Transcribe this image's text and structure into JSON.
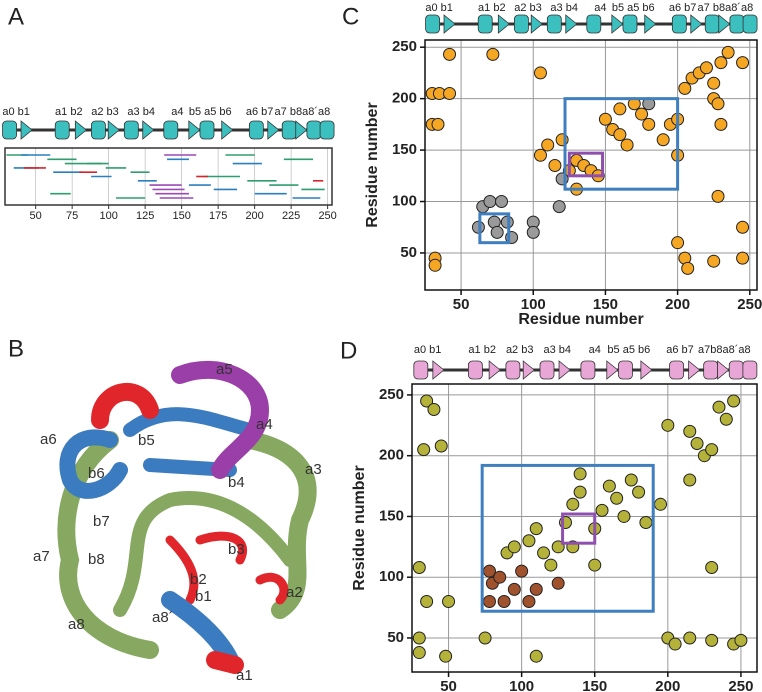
{
  "panel_labels": [
    "A",
    "B",
    "C",
    "D"
  ],
  "structure_labels": [
    "a5",
    "a4",
    "b5",
    "b4",
    "a6",
    "b6",
    "a3",
    "b7",
    "b3",
    "a7",
    "b8",
    "b2",
    "b1",
    "a2",
    "a8´",
    "a8",
    "a1"
  ],
  "chart_data": [
    {
      "type": "range",
      "track_labels": [
        "a0 b1",
        "a1 b2",
        "a2 b3",
        "a3 b4",
        "a4",
        "b5 a5 b6",
        "a6 b7",
        "a7 b8a8´a8"
      ],
      "track_color": "#3cbfbf",
      "xlim": [
        29,
        253
      ],
      "xticks": [
        50,
        75,
        100,
        125,
        150,
        175,
        200,
        225,
        250
      ],
      "grid": true,
      "series": [
        {
          "color": "#2e9e6f",
          "start": [
            30,
            58,
            70,
            98,
            115,
            165,
            195,
            210,
            232,
            60,
            105,
            180,
            220,
            85
          ],
          "end": [
            45,
            78,
            95,
            112,
            128,
            190,
            215,
            230,
            248,
            74,
            125,
            200,
            240,
            100
          ]
        },
        {
          "color": "#2a7fc0",
          "start": [
            35,
            62,
            88,
            120,
            155,
            172,
            200,
            226,
            40,
            140,
            185
          ],
          "end": [
            52,
            82,
            102,
            133,
            170,
            188,
            222,
            245,
            60,
            155,
            205
          ]
        },
        {
          "color": "#d8232a",
          "start": [
            42,
            80,
            160,
            240
          ],
          "end": [
            57,
            92,
            168,
            247
          ]
        },
        {
          "color": "#9b4ab5",
          "start": [
            128,
            130,
            132,
            135,
            138
          ],
          "end": [
            150,
            152,
            155,
            158,
            160
          ]
        }
      ]
    },
    {
      "type": "scatter",
      "track_labels": [
        "a0 b1",
        "a1 b2",
        "a2 b3",
        "a3 b4",
        "a4",
        "b5 a5 b6",
        "a6 b7",
        "a7 b8a8´a8"
      ],
      "track_color": "#3cbfbf",
      "x_label": "Residue number",
      "y_label": "Residue number",
      "xlim": [
        25,
        255
      ],
      "ylim": [
        14,
        257
      ],
      "xticks": [
        50,
        100,
        150,
        200,
        250
      ],
      "yticks": [
        50,
        100,
        150,
        200,
        250
      ],
      "grid": true,
      "series": [
        {
          "color": "#f5a623",
          "x": [
            30,
            35,
            42,
            42,
            30,
            34,
            32,
            32,
            72,
            105,
            105,
            110,
            115,
            120,
            125,
            130,
            135,
            140,
            145,
            130,
            150,
            155,
            160,
            165,
            170,
            175,
            160,
            180,
            190,
            195,
            200,
            200,
            205,
            210,
            215,
            220,
            225,
            230,
            235,
            225,
            230,
            228,
            228,
            245,
            245,
            245,
            205,
            207,
            225,
            200
          ],
          "y": [
            205,
            205,
            243,
            205,
            175,
            175,
            45,
            38,
            243,
            225,
            145,
            155,
            135,
            160,
            130,
            140,
            135,
            130,
            125,
            112,
            180,
            170,
            165,
            155,
            195,
            185,
            190,
            175,
            160,
            175,
            145,
            180,
            210,
            220,
            225,
            230,
            215,
            235,
            245,
            200,
            175,
            105,
            195,
            235,
            75,
            45,
            45,
            35,
            42,
            60
          ]
        },
        {
          "color": "#9a9a9a",
          "x": [
            62,
            65,
            70,
            73,
            75,
            78,
            82,
            85,
            100,
            100,
            118,
            120,
            180
          ],
          "y": [
            75,
            95,
            100,
            80,
            70,
            100,
            80,
            65,
            80,
            70,
            95,
            122,
            195
          ]
        }
      ],
      "boxes": [
        {
          "color": "#3f7fbf",
          "x": [
            122,
            200
          ],
          "y": [
            112,
            200
          ]
        },
        {
          "color": "#3f7fbf",
          "x": [
            63,
            83
          ],
          "y": [
            60,
            88
          ]
        },
        {
          "color": "#8e4fae",
          "x": [
            125,
            148
          ],
          "y": [
            125,
            147
          ]
        }
      ]
    },
    {
      "type": "scatter",
      "track_labels": [
        "a0 b1",
        "a1 b2",
        "a2 b3",
        "a3 b4",
        "a4",
        "b5 a5 b6",
        "a6 b7",
        "a7b8a8´a8"
      ],
      "track_color": "#e8a6d6",
      "x_label": "Residue number",
      "y_label": "Residue number",
      "xlim": [
        25,
        261
      ],
      "ylim": [
        22,
        259
      ],
      "xticks": [
        50,
        100,
        150,
        200,
        250
      ],
      "yticks": [
        50,
        100,
        150,
        200,
        250
      ],
      "grid": true,
      "series": [
        {
          "color": "#b5b23a",
          "x": [
            30,
            33,
            35,
            40,
            45,
            30,
            35,
            50,
            48,
            30,
            75,
            110,
            90,
            95,
            105,
            110,
            115,
            120,
            125,
            130,
            135,
            140,
            140,
            150,
            155,
            160,
            165,
            170,
            175,
            180,
            185,
            150,
            200,
            215,
            220,
            225,
            230,
            235,
            245,
            240,
            200,
            205,
            215,
            230,
            245,
            250,
            230,
            215,
            195,
            135
          ],
          "y": [
            50,
            205,
            245,
            238,
            208,
            108,
            80,
            80,
            35,
            38,
            50,
            35,
            120,
            125,
            130,
            140,
            120,
            110,
            125,
            145,
            160,
            170,
            185,
            140,
            155,
            175,
            165,
            150,
            180,
            170,
            145,
            110,
            225,
            220,
            210,
            200,
            205,
            240,
            245,
            230,
            50,
            45,
            50,
            48,
            45,
            48,
            108,
            180,
            160,
            125
          ]
        },
        {
          "color": "#a0522d",
          "x": [
            78,
            80,
            85,
            88,
            95,
            100,
            105,
            110,
            78,
            125
          ],
          "y": [
            105,
            95,
            100,
            80,
            90,
            105,
            80,
            90,
            80,
            95
          ]
        }
      ],
      "boxes": [
        {
          "color": "#3f7fbf",
          "x": [
            73,
            190
          ],
          "y": [
            72,
            192
          ]
        },
        {
          "color": "#8e4fae",
          "x": [
            128,
            150
          ],
          "y": [
            128,
            152
          ]
        }
      ]
    }
  ]
}
